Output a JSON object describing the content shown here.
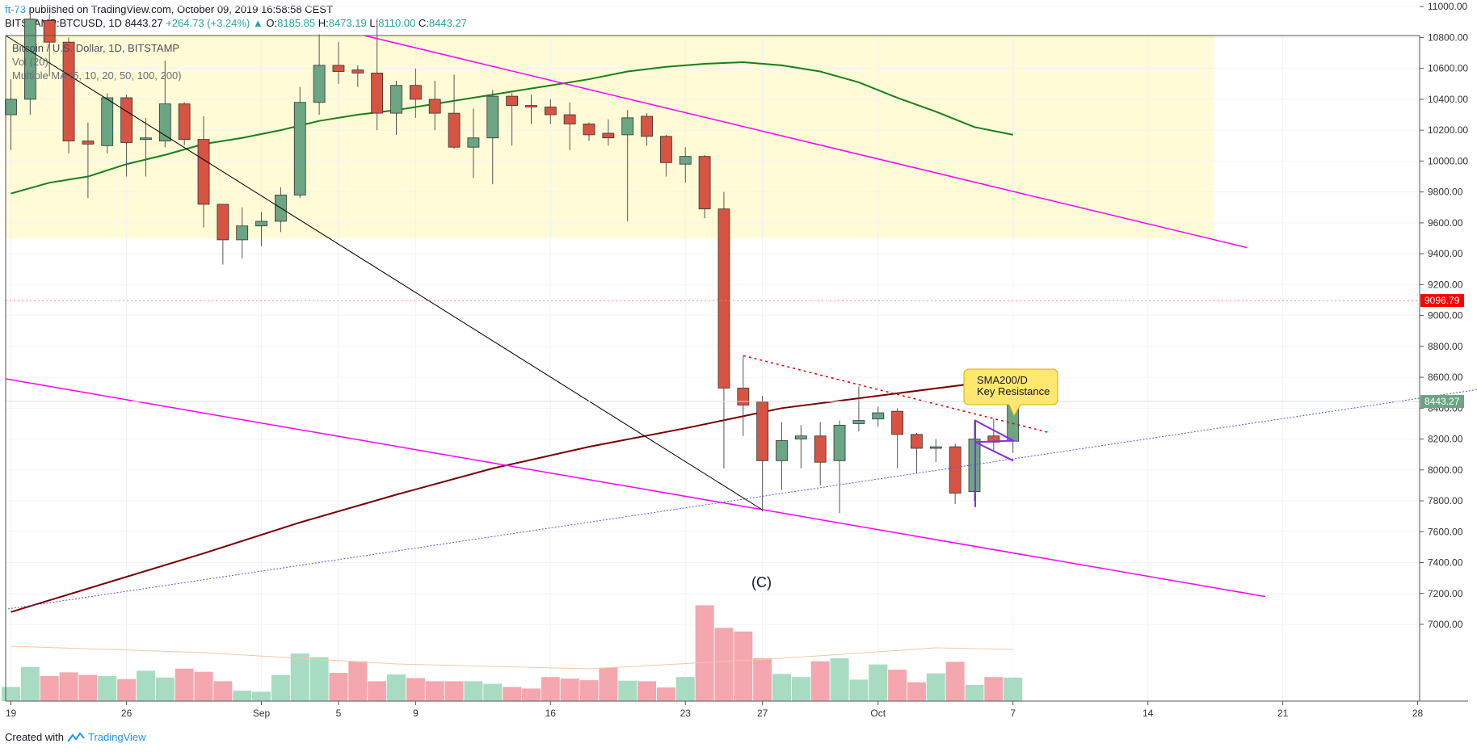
{
  "header": {
    "user": "ft-73",
    "published_text": "published on TradingView.com, October 09, 2019 16:58:58 CEST"
  },
  "ohlc": {
    "symbol": "BITSTAMP:BTCUSD, 1D",
    "last": "8443.27",
    "change": "+264.73 (+3.24%)",
    "o_label": "O:",
    "o": "8185.85",
    "h_label": "H:",
    "h": "8473.19",
    "l_label": "L:",
    "l": "8110.00",
    "c_label": "C:",
    "c": "8443.27"
  },
  "legend": {
    "title": "Bitcoin / U.S. Dollar, 1D, BITSTAMP",
    "vol": "Vol (20)",
    "ma": "Multiple MA (5, 10, 20, 50, 100, 200)"
  },
  "annotations": {
    "callout_line1": "SMA200/D",
    "callout_line2": "Key Resistance",
    "wave_label": "(C)"
  },
  "price_labels": {
    "alert": "9096.79",
    "last": "8443.27"
  },
  "footer": {
    "created_with": "Created with",
    "brand": "TradingView"
  },
  "colors": {
    "up": "#6ba583",
    "down": "#d75442",
    "vol_up": "#a8dcc2",
    "vol_down": "#f4a7af",
    "sma50": "#1a7f1a",
    "sma200": "#7a0000",
    "magenta": "#ff00ff",
    "zone": "#fffbd6",
    "alert": "#ff0000",
    "last": "#6ba583"
  },
  "chart_data": {
    "type": "candlestick",
    "symbol": "BITSTAMP:BTCUSD",
    "interval": "1D",
    "ylim": [
      6900,
      11200
    ],
    "y_ticks": [
      "11000.00",
      "10800.00",
      "10600.00",
      "10400.00",
      "10200.00",
      "10000.00",
      "9800.00",
      "9600.00",
      "9400.00",
      "9200.00",
      "9000.00",
      "8800.00",
      "8600.00",
      "8400.00",
      "8200.00",
      "8000.00",
      "7800.00",
      "7600.00",
      "7400.00",
      "7200.00",
      "7000.00"
    ],
    "x_ticks": [
      "19",
      "26",
      "Sep",
      "5",
      "9",
      "16",
      "23",
      "27",
      "Oct",
      "7",
      "14",
      "21",
      "28"
    ],
    "candles": [
      {
        "o": 10300,
        "h": 10530,
        "l": 10070,
        "c": 10400
      },
      {
        "o": 10400,
        "h": 10950,
        "l": 10300,
        "c": 10920
      },
      {
        "o": 10910,
        "h": 10950,
        "l": 10550,
        "c": 10770
      },
      {
        "o": 10770,
        "h": 10800,
        "l": 10050,
        "c": 10130
      },
      {
        "o": 10130,
        "h": 10250,
        "l": 9760,
        "c": 10110
      },
      {
        "o": 10100,
        "h": 10440,
        "l": 10050,
        "c": 10410
      },
      {
        "o": 10410,
        "h": 10430,
        "l": 9900,
        "c": 10120
      },
      {
        "o": 10140,
        "h": 10280,
        "l": 9900,
        "c": 10150
      },
      {
        "o": 10130,
        "h": 10650,
        "l": 10090,
        "c": 10370
      },
      {
        "o": 10370,
        "h": 10380,
        "l": 10100,
        "c": 10140
      },
      {
        "o": 10140,
        "h": 10290,
        "l": 9570,
        "c": 9720
      },
      {
        "o": 9720,
        "h": 9720,
        "l": 9330,
        "c": 9490
      },
      {
        "o": 9490,
        "h": 9700,
        "l": 9370,
        "c": 9580
      },
      {
        "o": 9580,
        "h": 9670,
        "l": 9450,
        "c": 9610
      },
      {
        "o": 9610,
        "h": 9830,
        "l": 9540,
        "c": 9780
      },
      {
        "o": 9780,
        "h": 10480,
        "l": 9760,
        "c": 10380
      },
      {
        "o": 10380,
        "h": 10820,
        "l": 10300,
        "c": 10620
      },
      {
        "o": 10620,
        "h": 10770,
        "l": 10500,
        "c": 10580
      },
      {
        "o": 10590,
        "h": 10620,
        "l": 10480,
        "c": 10570
      },
      {
        "o": 10570,
        "h": 10920,
        "l": 10200,
        "c": 10310
      },
      {
        "o": 10310,
        "h": 10520,
        "l": 10170,
        "c": 10490
      },
      {
        "o": 10490,
        "h": 10600,
        "l": 10280,
        "c": 10400
      },
      {
        "o": 10400,
        "h": 10520,
        "l": 10200,
        "c": 10310
      },
      {
        "o": 10310,
        "h": 10560,
        "l": 10080,
        "c": 10090
      },
      {
        "o": 10090,
        "h": 10340,
        "l": 9890,
        "c": 10150
      },
      {
        "o": 10150,
        "h": 10460,
        "l": 9850,
        "c": 10420
      },
      {
        "o": 10420,
        "h": 10440,
        "l": 10100,
        "c": 10360
      },
      {
        "o": 10360,
        "h": 10430,
        "l": 10240,
        "c": 10350
      },
      {
        "o": 10350,
        "h": 10400,
        "l": 10240,
        "c": 10300
      },
      {
        "o": 10300,
        "h": 10380,
        "l": 10070,
        "c": 10240
      },
      {
        "o": 10240,
        "h": 10250,
        "l": 10130,
        "c": 10170
      },
      {
        "o": 10180,
        "h": 10270,
        "l": 10100,
        "c": 10150
      },
      {
        "o": 10170,
        "h": 10330,
        "l": 9610,
        "c": 10280
      },
      {
        "o": 10290,
        "h": 10310,
        "l": 10100,
        "c": 10160
      },
      {
        "o": 10160,
        "h": 10170,
        "l": 9900,
        "c": 9990
      },
      {
        "o": 9980,
        "h": 10090,
        "l": 9860,
        "c": 10030
      },
      {
        "o": 10030,
        "h": 10040,
        "l": 9630,
        "c": 9690
      },
      {
        "o": 9690,
        "h": 9800,
        "l": 8010,
        "c": 8530
      },
      {
        "o": 8530,
        "h": 8740,
        "l": 8220,
        "c": 8420
      },
      {
        "o": 8440,
        "h": 8480,
        "l": 7730,
        "c": 8060
      },
      {
        "o": 8060,
        "h": 8310,
        "l": 7870,
        "c": 8190
      },
      {
        "o": 8200,
        "h": 8290,
        "l": 8010,
        "c": 8220
      },
      {
        "o": 8220,
        "h": 8310,
        "l": 7900,
        "c": 8050
      },
      {
        "o": 8060,
        "h": 8320,
        "l": 7720,
        "c": 8290
      },
      {
        "o": 8300,
        "h": 8540,
        "l": 8250,
        "c": 8320
      },
      {
        "o": 8330,
        "h": 8410,
        "l": 8280,
        "c": 8370
      },
      {
        "o": 8380,
        "h": 8400,
        "l": 8010,
        "c": 8230
      },
      {
        "o": 8230,
        "h": 8240,
        "l": 7980,
        "c": 8140
      },
      {
        "o": 8140,
        "h": 8200,
        "l": 8050,
        "c": 8150
      },
      {
        "o": 8150,
        "h": 8170,
        "l": 7780,
        "c": 7850
      },
      {
        "o": 7860,
        "h": 8320,
        "l": 7800,
        "c": 8200
      },
      {
        "o": 8220,
        "h": 8330,
        "l": 8120,
        "c": 8180
      },
      {
        "o": 8186,
        "h": 8473,
        "l": 8110,
        "c": 8443
      }
    ],
    "volume_relative": [
      0.27,
      0.65,
      0.48,
      0.55,
      0.5,
      0.48,
      0.42,
      0.58,
      0.45,
      0.62,
      0.56,
      0.38,
      0.2,
      0.18,
      0.5,
      0.91,
      0.84,
      0.54,
      0.76,
      0.38,
      0.51,
      0.44,
      0.38,
      0.38,
      0.38,
      0.33,
      0.27,
      0.24,
      0.46,
      0.43,
      0.4,
      0.64,
      0.39,
      0.38,
      0.26,
      0.46,
      1.83,
      1.4,
      1.33,
      0.82,
      0.52,
      0.46,
      0.76,
      0.82,
      0.41,
      0.7,
      0.6,
      0.36,
      0.53,
      0.75,
      0.31,
      0.46,
      0.45
    ],
    "sma50": [
      [
        0,
        9790
      ],
      [
        2,
        9860
      ],
      [
        4,
        9900
      ],
      [
        6,
        9980
      ],
      [
        8,
        10040
      ],
      [
        10,
        10110
      ],
      [
        12,
        10150
      ],
      [
        14,
        10200
      ],
      [
        16,
        10260
      ],
      [
        18,
        10300
      ],
      [
        20,
        10330
      ],
      [
        22,
        10370
      ],
      [
        24,
        10410
      ],
      [
        26,
        10450
      ],
      [
        28,
        10490
      ],
      [
        30,
        10530
      ],
      [
        32,
        10580
      ],
      [
        34,
        10610
      ],
      [
        36,
        10630
      ],
      [
        38,
        10640
      ],
      [
        40,
        10620
      ],
      [
        42,
        10580
      ],
      [
        44,
        10510
      ],
      [
        46,
        10410
      ],
      [
        48,
        10320
      ],
      [
        50,
        10220
      ],
      [
        52,
        10170
      ]
    ],
    "sma200": [
      [
        0,
        7080
      ],
      [
        5,
        7270
      ],
      [
        10,
        7460
      ],
      [
        15,
        7660
      ],
      [
        20,
        7840
      ],
      [
        25,
        8010
      ],
      [
        30,
        8150
      ],
      [
        35,
        8270
      ],
      [
        40,
        8400
      ],
      [
        45,
        8480
      ],
      [
        50,
        8560
      ],
      [
        52,
        8610
      ]
    ],
    "resistance_alert": 9096.79,
    "zone": [
      9500,
      11200
    ]
  }
}
